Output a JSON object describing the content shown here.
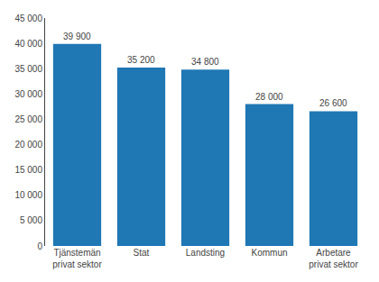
{
  "chart_data": {
    "type": "bar",
    "categories": [
      "Tjänstemän\nprivat sektor",
      "Stat",
      "Landsting",
      "Kommun",
      "Arbetare\nprivat sektor"
    ],
    "values": [
      39900,
      35200,
      34800,
      28000,
      26600
    ],
    "value_labels": [
      "39 900",
      "35 200",
      "34 800",
      "28 000",
      "26 600"
    ],
    "data_labels": true,
    "ylim": [
      0,
      45000
    ],
    "yticks": [
      0,
      {
        "value": 5000,
        "label": "5 000"
      },
      {
        "value": 10000,
        "label": "10 000"
      },
      {
        "value": 15000,
        "label": "15 000"
      },
      {
        "value": 20000,
        "label": "20 000"
      },
      {
        "value": 25000,
        "label": "25 000"
      },
      {
        "value": 30000,
        "label": "30 000"
      },
      {
        "value": 35000,
        "label": "35 000"
      },
      {
        "value": 40000,
        "label": "40 000"
      },
      {
        "value": 45000,
        "label": "45 000"
      }
    ],
    "grid": false
  }
}
